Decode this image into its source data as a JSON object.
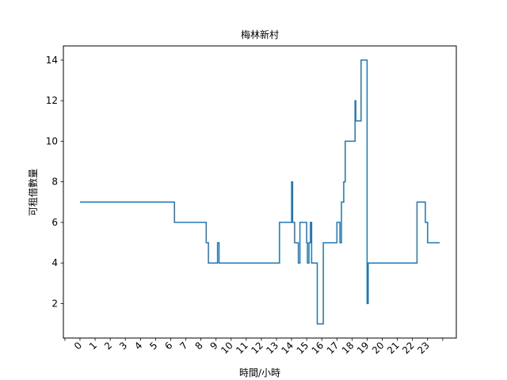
{
  "chart_data": {
    "type": "line",
    "title": "梅林新村",
    "xlabel": "時間/小時",
    "ylabel": "可租借數量",
    "xlim": [
      -1.1,
      24.9
    ],
    "ylim": [
      0.3,
      14.7
    ],
    "x_ticks": [
      "0",
      "1",
      "2",
      "3",
      "4",
      "5",
      "6",
      "7",
      "8",
      "9",
      "10",
      "11",
      "12",
      "13",
      "14",
      "15",
      "16",
      "17",
      "18",
      "19",
      "20",
      "21",
      "22",
      "23"
    ],
    "y_ticks": [
      2,
      4,
      6,
      8,
      10,
      12,
      14
    ],
    "grid": false,
    "series": [
      {
        "color": "#1f77b4",
        "step": "post",
        "x": [
          0,
          6.25,
          8.35,
          8.5,
          9.1,
          9.2,
          13.2,
          14.0,
          14.07,
          14.2,
          14.45,
          14.55,
          14.65,
          15.0,
          15.05,
          15.15,
          15.25,
          15.33,
          15.4,
          15.7,
          16.1,
          17.0,
          17.2,
          17.3,
          17.45,
          17.55,
          17.7,
          18.2,
          18.25,
          18.6,
          19.0,
          19.07,
          22.3,
          22.85,
          23.0,
          23.8
        ],
        "y": [
          7,
          6,
          5,
          4,
          5,
          4,
          6,
          8,
          6,
          5,
          4,
          6,
          6,
          5,
          4,
          5,
          6,
          4,
          4,
          1,
          5,
          6,
          5,
          7,
          8,
          10,
          10,
          12,
          11,
          14,
          2,
          4,
          7,
          6,
          5,
          5
        ]
      }
    ]
  }
}
